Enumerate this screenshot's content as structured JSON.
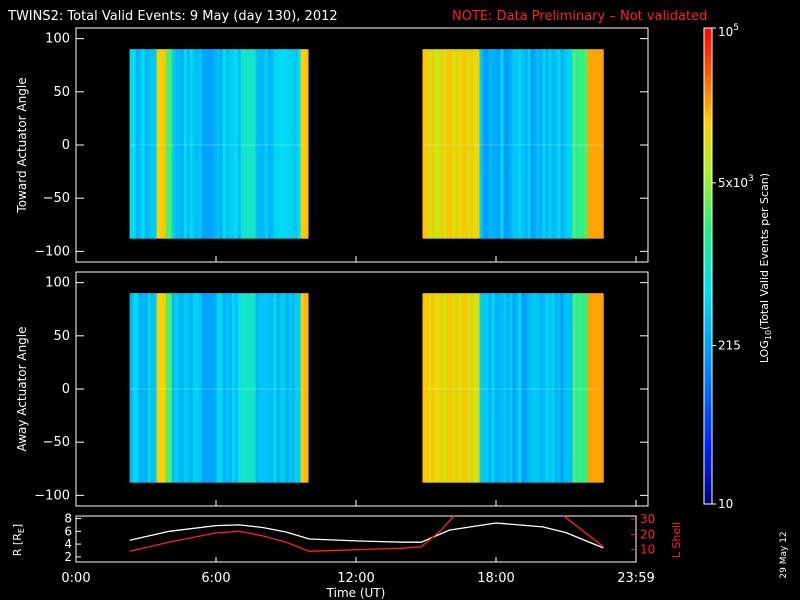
{
  "title": {
    "main": "TWINS2: Total Valid Events:  9 May (day 130), 2012",
    "note": "NOTE: Data Preliminary – Not validated",
    "note_color": "#ff2020"
  },
  "date_stamp": "29 May 12",
  "chart_data": [
    {
      "type": "heatmap",
      "name": "toward-panel",
      "ylabel": "Toward Actuator Angle",
      "ylim": [
        -110,
        110
      ],
      "yticks": [
        "100",
        "50",
        "0",
        "−50",
        "−100"
      ],
      "ytick_values": [
        100,
        50,
        0,
        -50,
        -100
      ],
      "xlim": [
        0,
        24
      ],
      "data_blocks": [
        {
          "start_hr": 2.3,
          "end_hr": 9.95,
          "angle_range": [
            -88,
            90
          ]
        },
        {
          "start_hr": 14.85,
          "end_hr": 22.6,
          "angle_range": [
            -88,
            90
          ]
        }
      ]
    },
    {
      "type": "heatmap",
      "name": "away-panel",
      "ylabel": "Away Actuator Angle",
      "ylim": [
        -110,
        110
      ],
      "yticks": [
        "100",
        "50",
        "0",
        "−50",
        "−100"
      ],
      "ytick_values": [
        100,
        50,
        0,
        -50,
        -100
      ],
      "xlim": [
        0,
        24
      ],
      "data_blocks": [
        {
          "start_hr": 2.3,
          "end_hr": 9.95,
          "angle_range": [
            -88,
            90
          ]
        },
        {
          "start_hr": 14.85,
          "end_hr": 22.6,
          "angle_range": [
            -88,
            90
          ]
        }
      ]
    },
    {
      "type": "line",
      "name": "orbit-panel",
      "ylabel_left": "R [R",
      "ylabel_left_sub": "E",
      "ylabel_left_end": "]",
      "ylabel_right": "L Shell",
      "yticks_left": [
        "8",
        "6",
        "4",
        "2"
      ],
      "ytick_left_values": [
        8,
        6,
        4,
        2
      ],
      "yticks_right": [
        "30",
        "20",
        "10"
      ],
      "ytick_right_values": [
        30,
        20,
        10
      ],
      "ylim_left": [
        1.2,
        8.4
      ],
      "ylim_right": [
        2,
        32
      ],
      "xlabel": "Time (UT)",
      "xticks": [
        "0:00",
        "6:00",
        "12:00",
        "18:00",
        "23:59"
      ],
      "xtick_values": [
        0,
        6,
        12,
        18,
        24
      ],
      "series": [
        {
          "name": "R",
          "color": "#ffffff",
          "x": [
            2.3,
            4,
            6,
            7,
            8,
            9,
            10,
            12,
            14,
            14.8,
            16,
            18,
            20,
            21,
            22.6
          ],
          "y": [
            4.6,
            6.0,
            6.9,
            7.0,
            6.6,
            5.9,
            4.8,
            4.5,
            4.3,
            4.3,
            6.2,
            7.3,
            6.7,
            5.8,
            3.4
          ]
        },
        {
          "name": "L Shell",
          "color": "#ff2020",
          "x": [
            2.3,
            4,
            6,
            7,
            8,
            9,
            10,
            12,
            14,
            14.8,
            15.6,
            16.2
          ],
          "y": [
            9,
            15,
            21,
            22,
            19,
            15,
            9,
            10,
            11,
            12,
            22,
            32
          ]
        },
        {
          "name": "L Shell (end)",
          "color": "#ff2020",
          "x": [
            20.9,
            22.6
          ],
          "y": [
            32,
            12
          ]
        }
      ]
    }
  ],
  "colorbar": {
    "label": "LOG10(Total Valid Events per Scan)",
    "label_main": "LOG",
    "label_sub": "10",
    "label_rest": "(Total Valid Events per Scan)",
    "ticks": [
      {
        "value": 100000,
        "base": "10",
        "exp": "5"
      },
      {
        "value": 5000,
        "base": "5x10",
        "exp": "3"
      },
      {
        "value": 215,
        "base": "215",
        "exp": ""
      },
      {
        "value": 10,
        "base": "10",
        "exp": ""
      }
    ],
    "range": [
      10,
      100000
    ]
  }
}
